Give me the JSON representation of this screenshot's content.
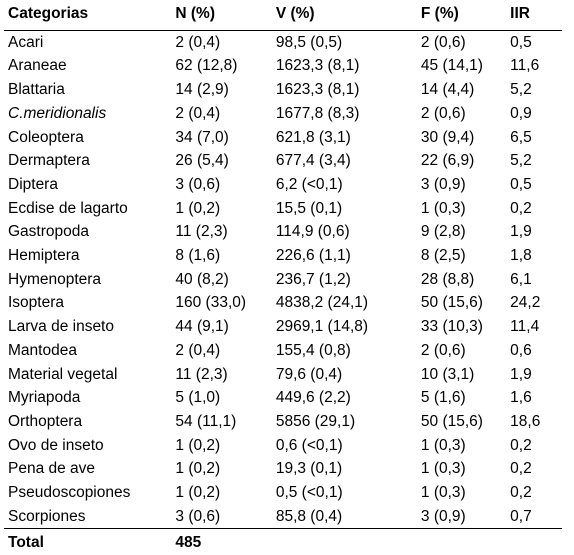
{
  "table": {
    "type": "table",
    "background_color": "#ffffff",
    "text_color": "#000000",
    "border_color": "#000000",
    "font_family": "Arial",
    "header_fontsize": 15.5,
    "body_fontsize": 15.5,
    "header_fontweight": "bold",
    "columns": [
      {
        "key": "cat",
        "label": "Categorias"
      },
      {
        "key": "n",
        "label": "N (%)"
      },
      {
        "key": "v",
        "label": "V  (%)"
      },
      {
        "key": "f",
        "label": "F (%)"
      },
      {
        "key": "iir",
        "label": "IIR"
      }
    ],
    "rows": [
      {
        "cat": "Acari",
        "n": "2 (0,4)",
        "v": "98,5 (0,5)",
        "f": "2 (0,6)",
        "iir": "0,5"
      },
      {
        "cat": "Araneae",
        "n": "62 (12,8)",
        "v": "1623,3 (8,1)",
        "f": "45 (14,1)",
        "iir": "11,6"
      },
      {
        "cat": "Blattaria",
        "n": "14 (2,9)",
        "v": "1623,3 (8,1)",
        "f": "14 (4,4)",
        "iir": "5,2"
      },
      {
        "cat": "C.meridionalis",
        "n": "2 (0,4)",
        "v": "1677,8 (8,3)",
        "f": "2 (0,6)",
        "iir": "0,9",
        "italic": true
      },
      {
        "cat": "Coleoptera",
        "n": "34 (7,0)",
        "v": "621,8 (3,1)",
        "f": "30 (9,4)",
        "iir": "6,5"
      },
      {
        "cat": "Dermaptera",
        "n": "26 (5,4)",
        "v": "677,4 (3,4)",
        "f": "22 (6,9)",
        "iir": "5,2"
      },
      {
        "cat": "Diptera",
        "n": "3 (0,6)",
        "v": "6,2 (<0,1)",
        "f": "3 (0,9)",
        "iir": "0,5"
      },
      {
        "cat": "Ecdise de lagarto",
        "n": "1 (0,2)",
        "v": "15,5 (0,1)",
        "f": "1 (0,3)",
        "iir": "0,2"
      },
      {
        "cat": "Gastropoda",
        "n": "11 (2,3)",
        "v": "114,9 (0,6)",
        "f": "9 (2,8)",
        "iir": "1,9"
      },
      {
        "cat": "Hemiptera",
        "n": "8 (1,6)",
        "v": "226,6 (1,1)",
        "f": "8 (2,5)",
        "iir": "1,8"
      },
      {
        "cat": "Hymenoptera",
        "n": "40 (8,2)",
        "v": "236,7 (1,2)",
        "f": "28 (8,8)",
        "iir": "6,1"
      },
      {
        "cat": "Isoptera",
        "n": "160 (33,0)",
        "v": "4838,2 (24,1)",
        "f": "50 (15,6)",
        "iir": "24,2"
      },
      {
        "cat": "Larva de inseto",
        "n": "44 (9,1)",
        "v": "2969,1 (14,8)",
        "f": "33 (10,3)",
        "iir": "11,4"
      },
      {
        "cat": "Mantodea",
        "n": "2 (0,4)",
        "v": "155,4 (0,8)",
        "f": "2 (0,6)",
        "iir": "0,6"
      },
      {
        "cat": "Material vegetal",
        "n": "11 (2,3)",
        "v": "79,6 (0,4)",
        "f": "10 (3,1)",
        "iir": "1,9"
      },
      {
        "cat": "Myriapoda",
        "n": "5 (1,0)",
        "v": "449,6 (2,2)",
        "f": "5 (1,6)",
        "iir": "1,6"
      },
      {
        "cat": "Orthoptera",
        "n": "54 (11,1)",
        "v": "5856 (29,1)",
        "f": "50 (15,6)",
        "iir": "18,6"
      },
      {
        "cat": "Ovo de inseto",
        "n": "1 (0,2)",
        "v": "0,6 (<0,1)",
        "f": "1 (0,3)",
        "iir": "0,2"
      },
      {
        "cat": "Pena de ave",
        "n": "1 (0,2)",
        "v": "19,3 (0,1)",
        "f": "1 (0,3)",
        "iir": "0,2"
      },
      {
        "cat": "Pseudoscopiones",
        "n": "1 (0,2)",
        "v": "0,5 (<0,1)",
        "f": "1 (0,3)",
        "iir": "0,2"
      },
      {
        "cat": "Scorpiones",
        "n": "3 (0,6)",
        "v": "85,8 (0,4)",
        "f": "3 (0,9)",
        "iir": "0,7"
      }
    ],
    "totals": {
      "label": "Total",
      "n": "485"
    }
  }
}
